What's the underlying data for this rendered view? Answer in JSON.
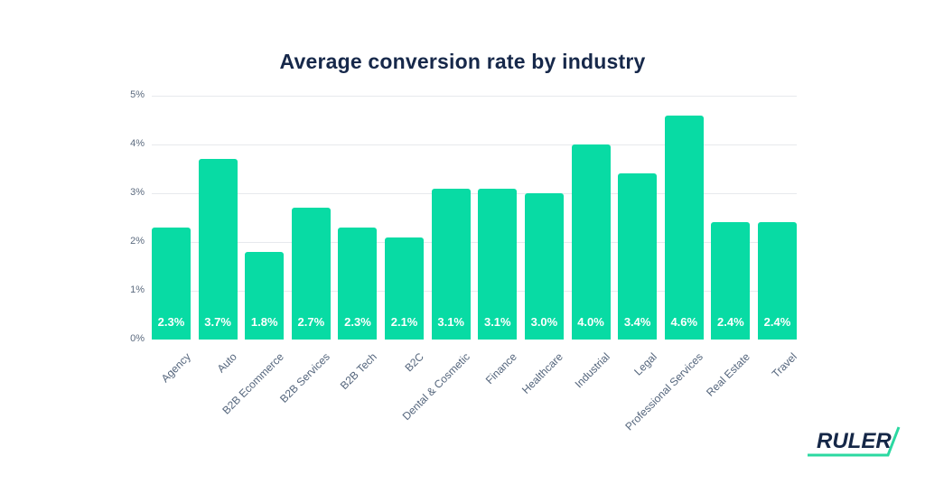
{
  "title": "Average conversion rate by industry",
  "chart_data": {
    "type": "bar",
    "title": "Average conversion rate by industry",
    "categories": [
      "Agency",
      "Auto",
      "B2B Ecommerce",
      "B2B Services",
      "B2B Tech",
      "B2C",
      "Dental & Cosmetic",
      "Finance",
      "Healthcare",
      "Industrial",
      "Legal",
      "Professional Services",
      "Real Estate",
      "Travel"
    ],
    "values": [
      2.3,
      3.7,
      1.8,
      2.7,
      2.3,
      2.1,
      3.1,
      3.1,
      3.0,
      4.0,
      3.4,
      4.6,
      2.4,
      2.4
    ],
    "value_labels": [
      "2.3%",
      "3.7%",
      "1.8%",
      "2.7%",
      "2.3%",
      "2.1%",
      "3.1%",
      "3.1%",
      "3.0%",
      "4.0%",
      "3.4%",
      "4.6%",
      "2.4%",
      "2.4%"
    ],
    "xlabel": "",
    "ylabel": "",
    "ylim": [
      0,
      5
    ],
    "yticks": [
      "0%",
      "1%",
      "2%",
      "3%",
      "4%",
      "5%"
    ],
    "grid": "horizontal-only",
    "legend": "none",
    "bar_color": "#08dba4",
    "value_label_color": "#ffffff"
  },
  "colors": {
    "background": "#ffffff",
    "title": "#16284a",
    "axis_label": "#54657c",
    "gridline": "#e7e9ed",
    "bar": "#08dba4",
    "logo_navy": "#152747",
    "logo_green": "#2bd8a1"
  },
  "logo": {
    "text": "RULER"
  }
}
